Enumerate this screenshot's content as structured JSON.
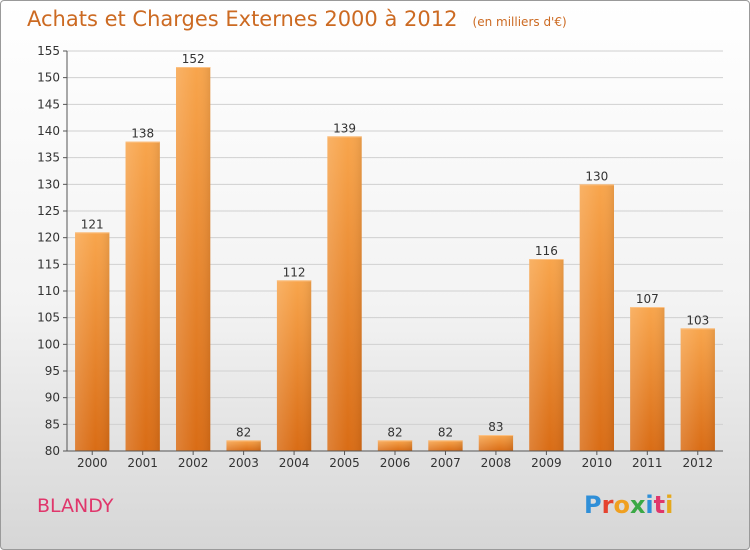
{
  "header": {
    "title": "Achats et Charges Externes 2000 à 2012",
    "subtitle": "(en milliers d'€)"
  },
  "commune": "BLANDY",
  "logo": {
    "text": "Proxiti",
    "letters": [
      "P",
      "r",
      "o",
      "x",
      "i",
      "t",
      "i"
    ]
  },
  "chart_data": {
    "type": "bar",
    "title": "Achats et Charges Externes 2000 à 2012",
    "subtitle": "(en milliers d'€)",
    "categories": [
      "2000",
      "2001",
      "2002",
      "2003",
      "2004",
      "2005",
      "2006",
      "2007",
      "2008",
      "2009",
      "2010",
      "2011",
      "2012"
    ],
    "values": [
      121,
      138,
      152,
      82,
      112,
      139,
      82,
      82,
      83,
      116,
      130,
      107,
      103
    ],
    "ylim": [
      80,
      155
    ],
    "yticks": [
      80,
      85,
      90,
      95,
      100,
      105,
      110,
      115,
      120,
      125,
      130,
      135,
      140,
      145,
      150,
      155
    ],
    "grid": true,
    "legend": "none",
    "colors": {
      "bar_light": "#f8a54c",
      "bar_dark": "#d96c15",
      "grid": "#d0d0d0",
      "axis": "#555555",
      "text": "#333333"
    }
  }
}
